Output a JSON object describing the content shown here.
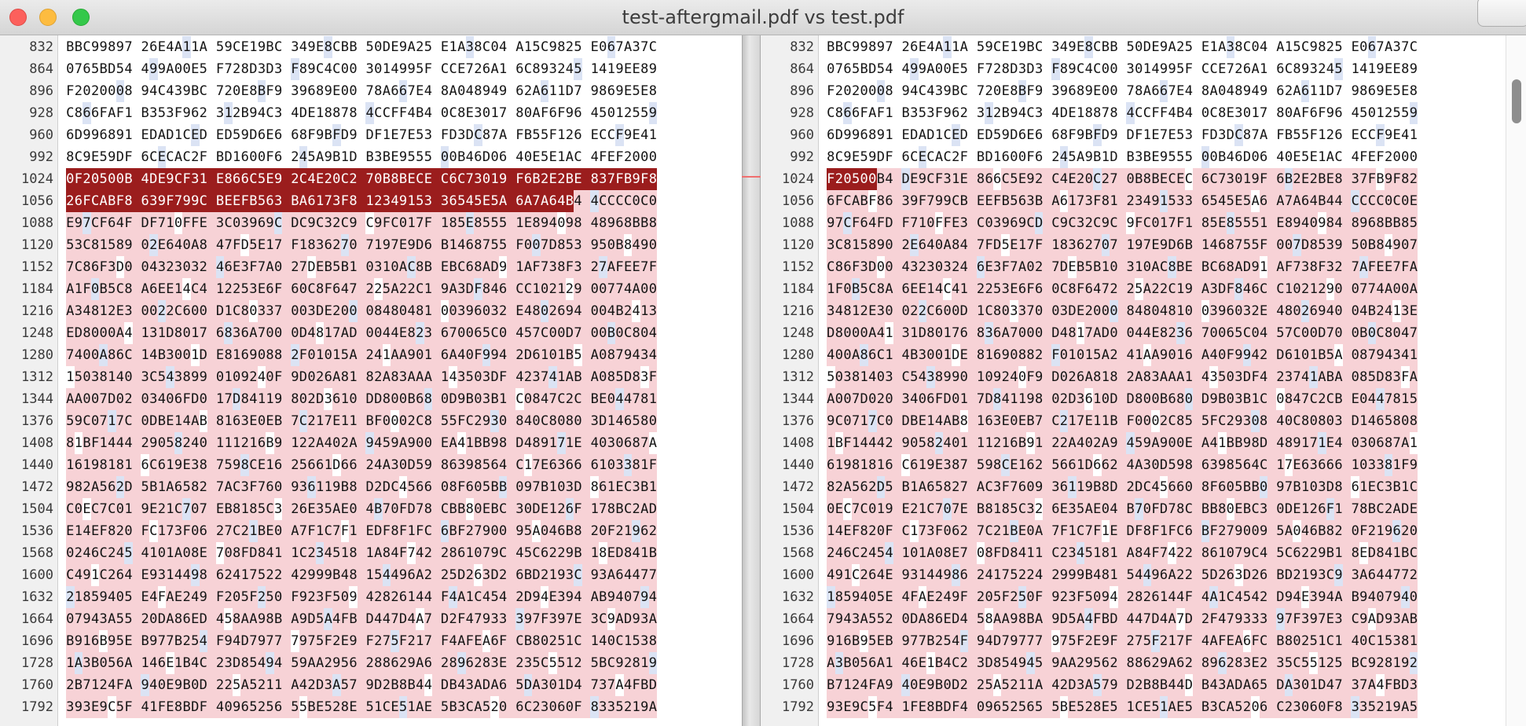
{
  "window": {
    "title": "test-aftergmail.pdf vs test.pdf"
  },
  "left": {
    "rows": [
      {
        "ln": "832",
        "text": "BBC99897 26E4A11A 59CE19BC 349E8CBB 50DE9A25 E1A38C04 A15C9825 E067A37C"
      },
      {
        "ln": "864",
        "text": "0765BD54 499A00E5 F728D3D3 F89C4C00 3014995F CCE726A1 6C893245 1419EE89"
      },
      {
        "ln": "896",
        "text": "F2020008 94C439BC 720E8BF9 39689E00 78A667E4 8A048949 62A611D7 9869E5E8"
      },
      {
        "ln": "928",
        "text": "C866FAF1 B353F962 312B94C3 4DE18878 4CCFF4B4 0C8E3017 80AF6F96 45012559"
      },
      {
        "ln": "960",
        "text": "6D996891 EDAD1CED ED59D6E6 68F9BFD9 DF1E7E53 FD3DC87A FB55F126 ECCF9E41"
      },
      {
        "ln": "992",
        "text": "8C9E59DF 6CECAC2F BD1600F6 245A9B1D B3BE9555 00B46D06 40E5E1AC 4FEF2000"
      },
      {
        "ln": "1024",
        "text": "0F20500B 4DE9CF31 E866C5E9 2C4E20C2 70B8BECE C6C73019 F6B2E2BE 837FB9F8"
      },
      {
        "ln": "1056",
        "text": "26FCABF8 639F799C BEEFB563 BA6173F8 12349153 36545E5A 6A7A64B4 4CCCC0C0"
      },
      {
        "ln": "1088",
        "text": "E97CF64F DF710FFE 3C03969C DC9C32C9 C9FC017F 185E8555 1E894098 48968BB8"
      },
      {
        "ln": "1120",
        "text": "53C81589 02E640A8 47FD5E17 F1836270 7197E9D6 B1468755 F007D853 950B8490"
      },
      {
        "ln": "1152",
        "text": "7C86F3D0 04323032 46E3F7A0 27DEB5B1 0310AC8B EBC68AD9 1AF738F3 27AFEE7F"
      },
      {
        "ln": "1184",
        "text": "A1F0B5C8 A6EE14C4 12253E6F 60C8F647 225A22C1 9A3DF846 CC102129 00774A00"
      },
      {
        "ln": "1216",
        "text": "A34812E3 0022C600 D1C80337 003DE200 08480481 00396032 E4802694 004B2413"
      },
      {
        "ln": "1248",
        "text": "ED8000A4 131D8017 6836A700 0D4817AD 0044E823 670065C0 457C00D7 00B0C804"
      },
      {
        "ln": "1280",
        "text": "7400A86C 14B3001D E8169088 2F01015A 241AA901 6A40F994 2D6101B5 A0879434"
      },
      {
        "ln": "1312",
        "text": "15038140 3C543899 0109240F 9D026A81 82A83AAA 143503DF 423741AB A085D83F"
      },
      {
        "ln": "1344",
        "text": "AA007D02 03406FD0 17D84119 802D3610 DD800B68 0D9B03B1 C0847C2C BE044781"
      },
      {
        "ln": "1376",
        "text": "59C0717C 0DBE14AB 8163E0EB 7C217E11 BF0002C8 55FC2930 840C8080 3D146580"
      },
      {
        "ln": "1408",
        "text": "81BF1444 29058240 111216B9 122A402A 9459A900 EA41BB98 D489171E 4030687A"
      },
      {
        "ln": "1440",
        "text": "16198181 6C619E38 7598CE16 25661D66 24A30D59 86398564 C17E6366 6103381F"
      },
      {
        "ln": "1472",
        "text": "982A562D 5B1A6582 7AC3F760 936119B8 D2DC4566 08F605BB 097B103D 861EC3B1"
      },
      {
        "ln": "1504",
        "text": "C0EC7C01 9E21C707 EB8185C3 26E35AE0 4B70FD78 CBB80EBC 30DE126F 178BC2AD"
      },
      {
        "ln": "1536",
        "text": "E14EF820 FC173F06 27C21BE0 A7F1C7F1 EDF8F1FC 6BF27900 95A046B8 20F21962"
      },
      {
        "ln": "1568",
        "text": "0246C245 4101A08E 708FD841 1C234518 1A84F742 2861079C 45C6229B 18ED841B"
      },
      {
        "ln": "1600",
        "text": "C491C264 E9314498 62417522 42999B48 154496A2 25D263D2 6BD2193C 93A64477"
      },
      {
        "ln": "1632",
        "text": "21859405 E4FAE249 F205F250 F923F509 42826144 F4A1C454 2D94E394 AB940794"
      },
      {
        "ln": "1664",
        "text": "07943A55 20DA86ED 458AA98B A9D5A4FB D447D4A7 D2F47933 397F397E 3C9AD93A"
      },
      {
        "ln": "1696",
        "text": "B916B95E B977B254 F94D7977 7975F2E9 F275F217 F4AFEA6F CB80251C 140C1538"
      },
      {
        "ln": "1728",
        "text": "1A3B056A 146E1B4C 23D85494 59AA2956 288629A6 2896283E 235C5512 5BC92819"
      },
      {
        "ln": "1760",
        "text": "2B7124FA 940E9B0D 225A5211 A42D3A57 9D2B8B44 DB43ADA6 5DA301D4 737A4FBD"
      },
      {
        "ln": "1792",
        "text": "393E9C5F 41FE8BDF 40965256 55BE528E 51CE51AE 5B3CA520 6C23060F 8335219A"
      }
    ]
  },
  "right": {
    "rows": [
      {
        "ln": "832",
        "text": "BBC99897 26E4A11A 59CE19BC 349E8CBB 50DE9A25 E1A38C04 A15C9825 E067A37C"
      },
      {
        "ln": "864",
        "text": "0765BD54 499A00E5 F728D3D3 F89C4C00 3014995F CCE726A1 6C893245 1419EE89"
      },
      {
        "ln": "896",
        "text": "F2020008 94C439BC 720E8BF9 39689E00 78A667E4 8A048949 62A611D7 9869E5E8"
      },
      {
        "ln": "928",
        "text": "C866FAF1 B353F962 312B94C3 4DE18878 4CCFF4B4 0C8E3017 80AF6F96 45012559"
      },
      {
        "ln": "960",
        "text": "6D996891 EDAD1CED ED59D6E6 68F9BFD9 DF1E7E53 FD3DC87A FB55F126 ECCF9E41"
      },
      {
        "ln": "992",
        "text": "8C9E59DF 6CECAC2F BD1600F6 245A9B1D B3BE9555 00B46D06 40E5E1AC 4FEF2000"
      },
      {
        "ln": "1024",
        "text": "F20500B4 DE9CF31E 866C5E92 C4E20C27 0B8BECEC 6C73019F 6B2E2BE8 37FB9F82"
      },
      {
        "ln": "1056",
        "text": "6FCABF86 39F799CB EEFB563B A6173F81 23491533 6545E5A6 A7A64B44 CCCC0C0E"
      },
      {
        "ln": "1088",
        "text": "97CF64FD F710FFE3 C03969CD C9C32C9C 9FC017F1 85E85551 E8940984 8968BB85"
      },
      {
        "ln": "1120",
        "text": "3C815890 2E640A84 7FD5E17F 18362707 197E9D6B 1468755F 007D8539 50B84907"
      },
      {
        "ln": "1152",
        "text": "C86F3D00 43230324 6E3F7A02 7DEB5B10 310AC8BE BC68AD91 AF738F32 7AFEE7FA"
      },
      {
        "ln": "1184",
        "text": "1F0B5C8A 6EE14C41 2253E6F6 0C8F6472 25A22C19 A3DF846C C1021290 0774A00A"
      },
      {
        "ln": "1216",
        "text": "34812E30 022C600D 1C803370 03DE2000 84804810 0396032E 48026940 04B2413E"
      },
      {
        "ln": "1248",
        "text": "D8000A41 31D80176 836A7000 D4817AD0 044E8236 70065C04 57C00D70 0B0C8047"
      },
      {
        "ln": "1280",
        "text": "400A86C1 4B3001DE 81690882 F01015A2 41AA9016 A40F9942 D6101B5A 08794341"
      },
      {
        "ln": "1312",
        "text": "50381403 C5438990 109240F9 D026A818 2A83AAA1 43503DF4 23741ABA 085D83FA"
      },
      {
        "ln": "1344",
        "text": "A007D020 3406FD01 7D841198 02D3610D D800B680 D9B03B1C 0847C2CB E0447815"
      },
      {
        "ln": "1376",
        "text": "9C0717C0 DBE14AB8 163E0EB7 C217E11B F0002C85 5FC29308 40C80803 D1465808"
      },
      {
        "ln": "1408",
        "text": "1BF14442 90582401 11216B91 22A402A9 459A900E A41BB98D 489171E4 030687A1"
      },
      {
        "ln": "1440",
        "text": "61981816 C619E387 598CE162 5661D662 4A30D598 6398564C 17E63666 103381F9"
      },
      {
        "ln": "1472",
        "text": "82A562D5 B1A65827 AC3F7609 36119B8D 2DC45660 8F605BB0 97B103D8 61EC3B1C"
      },
      {
        "ln": "1504",
        "text": "0EC7C019 E21C707E B8185C32 6E35AE04 B70FD78C BB80EBC3 0DE126F1 78BC2ADE"
      },
      {
        "ln": "1536",
        "text": "14EF820F C173F062 7C21BE0A 7F1C7F1E DF8F1FC6 BF279009 5A046B82 0F219620"
      },
      {
        "ln": "1568",
        "text": "246C2454 101A08E7 08FD8411 C2345181 A84F7422 861079C4 5C6229B1 8ED841BC"
      },
      {
        "ln": "1600",
        "text": "491C264E 93144986 24175224 2999B481 54496A22 5D263D26 BD2193C9 3A644772"
      },
      {
        "ln": "1632",
        "text": "1859405E 4FAE249F 205F250F 923F5094 2826144F 4A1C4542 D94E394A B9407940"
      },
      {
        "ln": "1664",
        "text": "7943A552 0DA86ED4 58AA98BA 9D5A4FBD 447D4A7D 2F479333 97F397E3 C9AD93AB"
      },
      {
        "ln": "1696",
        "text": "916B95EB 977B254F 94D79777 975F2E9F 275F217F 4AFEA6FC B80251C1 40C15381"
      },
      {
        "ln": "1728",
        "text": "A3B056A1 46E1B4C2 3D854945 9AA29562 88629A62 896283E2 35C55125 BC928192"
      },
      {
        "ln": "1760",
        "text": "B7124FA9 40E9B0D2 25A5211A 42D3A579 D2B8B44D B43ADA65 DA301D47 37A4FBD3"
      },
      {
        "ln": "1792",
        "text": "93E9C5F4 1FE8BDF4 09652565 5BE528E5 1CE51AE5 B3CA5206 C23060F8 335219A5"
      }
    ]
  },
  "colors": {
    "changed_bg": "#f7d2d6",
    "alt_bg": "#dbe3f4",
    "selection_bg": "#9b1d1d",
    "connector": "#f06f6f"
  }
}
